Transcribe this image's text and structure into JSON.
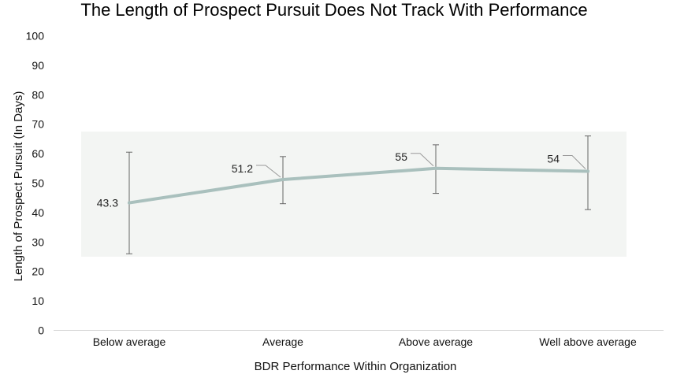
{
  "chart_data": {
    "type": "line",
    "title": "The Length of Prospect Pursuit Does Not Track With Performance",
    "xlabel": "BDR Performance Within Organization",
    "ylabel": "Length of Prospect Pursuit (In Days)",
    "categories": [
      "Below average",
      "Average",
      "Above average",
      "Well above average"
    ],
    "series": [
      {
        "values": [
          43.3,
          51.2,
          55,
          54
        ],
        "labels": [
          "43.3",
          "51.2",
          "55",
          "54"
        ],
        "error_low": [
          26,
          43,
          46.5,
          41
        ],
        "error_high": [
          60.5,
          59,
          63,
          66
        ]
      }
    ],
    "ylim": [
      0,
      100
    ],
    "yticks": [
      0,
      10,
      20,
      30,
      40,
      50,
      60,
      70,
      80,
      90,
      100
    ],
    "shaded_band": [
      25,
      67.5
    ],
    "grid": false,
    "legend": "none",
    "colors": {
      "line": "#a9c0bd",
      "band": "#f3f5f3",
      "error_bar": "#666666",
      "axis": "#d6d6d6",
      "leader": "#999999"
    }
  }
}
